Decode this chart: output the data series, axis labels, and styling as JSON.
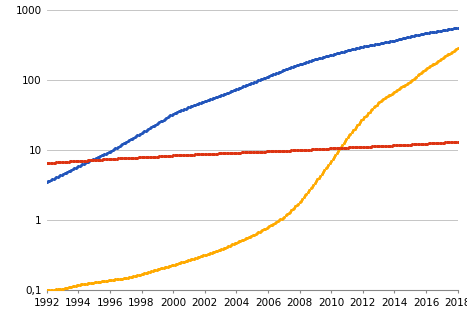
{
  "years": [
    1992,
    1993,
    1994,
    1995,
    1996,
    1997,
    1998,
    1999,
    2000,
    2001,
    2002,
    2003,
    2004,
    2005,
    2006,
    2007,
    2008,
    2009,
    2010,
    2011,
    2012,
    2013,
    2014,
    2015,
    2016,
    2017,
    2018
  ],
  "wind": [
    3.5,
    4.5,
    5.9,
    7.5,
    9.5,
    13.0,
    17.5,
    24.0,
    33.0,
    41.0,
    50.0,
    60.0,
    74.0,
    91.0,
    112.0,
    138.0,
    167.0,
    198.0,
    228.0,
    263.0,
    300.0,
    330.0,
    365.0,
    420.0,
    465.0,
    510.0,
    560.0
  ],
  "solar": [
    0.1,
    0.105,
    0.12,
    0.13,
    0.14,
    0.15,
    0.17,
    0.2,
    0.23,
    0.27,
    0.32,
    0.38,
    0.48,
    0.6,
    0.8,
    1.1,
    1.8,
    3.5,
    7.0,
    15.0,
    28.0,
    48.0,
    68.0,
    95.0,
    145.0,
    200.0,
    290.0
  ],
  "geothermal": [
    6.5,
    6.8,
    7.0,
    7.2,
    7.5,
    7.7,
    7.9,
    8.1,
    8.4,
    8.6,
    8.8,
    9.0,
    9.2,
    9.4,
    9.6,
    9.8,
    10.0,
    10.3,
    10.6,
    10.9,
    11.1,
    11.4,
    11.7,
    12.0,
    12.4,
    12.8,
    13.2
  ],
  "wind_color": "#2255bb",
  "solar_color": "#ffaa00",
  "geothermal_color": "#dd3311",
  "bg_color": "#ffffff",
  "grid_color": "#bbbbbb",
  "ylim": [
    0.1,
    1000
  ],
  "xlim": [
    1992,
    2018
  ],
  "xticks": [
    1992,
    1994,
    1996,
    1998,
    2000,
    2002,
    2004,
    2006,
    2008,
    2010,
    2012,
    2014,
    2016,
    2018
  ],
  "yticks_major": [
    0.1,
    1,
    10,
    100,
    1000
  ],
  "ytick_labels": [
    "0,1",
    "1",
    "10",
    "100",
    "1000"
  ]
}
